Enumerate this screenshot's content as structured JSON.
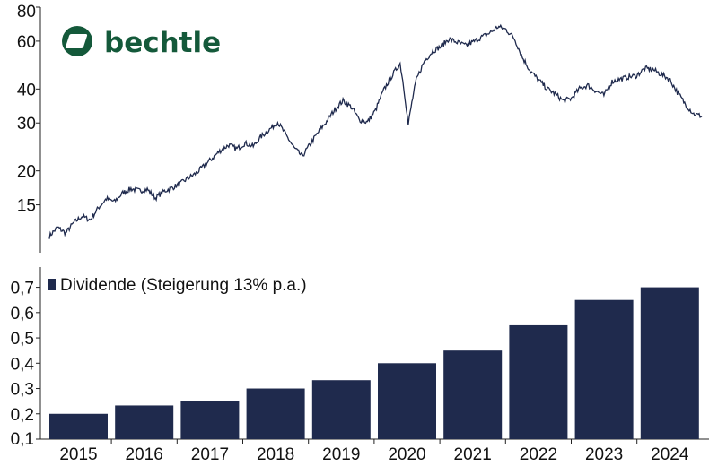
{
  "logo": {
    "text": "bechtle",
    "color": "#14593a"
  },
  "chart_data": [
    {
      "type": "line",
      "yscale": "log",
      "ylim": [
        10,
        80
      ],
      "y_ticks": [
        15,
        20,
        30,
        40,
        60,
        80
      ],
      "grid": false,
      "color": "#1f2a4d",
      "x_range": [
        "2015",
        "2024"
      ],
      "series": [
        {
          "values": [
            11.5,
            12.4,
            11.8,
            12.9,
            13.6,
            13.2,
            14.6,
            15.8,
            15.4,
            16.6,
            17.2,
            16.9,
            17.1,
            15.9,
            16.8,
            17.3,
            17.9,
            18.8,
            19.6,
            20.9,
            22.3,
            23.8,
            24.9,
            24.1,
            25.3,
            24.6,
            26.8,
            28.4,
            30.2,
            27.1,
            24.3,
            22.6,
            25.1,
            27.8,
            30.4,
            33.6,
            36.2,
            34.4,
            30.8,
            30.2,
            33.4,
            39.6,
            44.7,
            49.6,
            29.5,
            43.2,
            50.7,
            55.1,
            57.3,
            61.2,
            59.4,
            57.8,
            59.6,
            62.1,
            64.3,
            67.8,
            66.2,
            61.4,
            52.2,
            46.4,
            43.1,
            40.2,
            38.4,
            36.2,
            36.9,
            40.1,
            41.3,
            39.4,
            37.9,
            42.6,
            43.5,
            44.3,
            44.8,
            47.6,
            47.2,
            45.3,
            43.6,
            38.9,
            35.1,
            32.4,
            31.8
          ]
        }
      ]
    },
    {
      "type": "bar",
      "categories": [
        "2015",
        "2016",
        "2017",
        "2018",
        "2019",
        "2020",
        "2021",
        "2022",
        "2023",
        "2024"
      ],
      "values": [
        0.2,
        0.233,
        0.25,
        0.3,
        0.333,
        0.4,
        0.45,
        0.55,
        0.65,
        0.7
      ],
      "ylim": [
        0.1,
        0.78
      ],
      "y_ticks": [
        "0,1",
        "0,2",
        "0,3",
        "0,4",
        "0,5",
        "0,6",
        "0,7"
      ],
      "legend": "Dividende (Steigerung 13% p.a.)",
      "legend_position": "top-left",
      "grid": false,
      "color": "#1f2a4d"
    }
  ]
}
